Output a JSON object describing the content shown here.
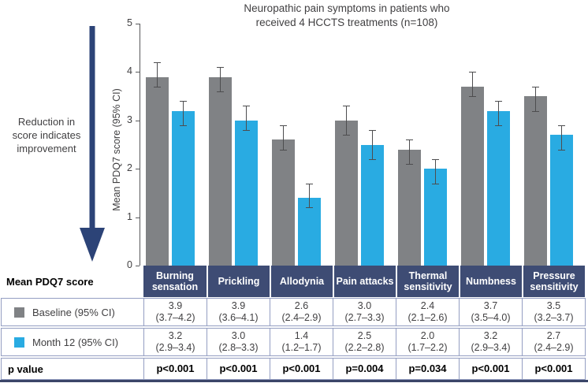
{
  "title": {
    "lines": [
      "Neuropathic pain symptoms in patients who",
      "received 4 HCCTS treatments (n=108)"
    ]
  },
  "annotation": {
    "lines": [
      "Reduction in",
      "score indicates",
      "improvement"
    ]
  },
  "y_axis": {
    "label": "Mean PDQ7 score (95% CI)",
    "ticks": [
      0,
      1,
      2,
      3,
      4,
      5
    ]
  },
  "colors": {
    "baseline_bar": "#808285",
    "month12_bar": "#29ABE2",
    "header_navy": "#3E4C74",
    "arrow_navy": "#2C4377",
    "table_border": "#949EC2",
    "error_bar": "#4D4D4F",
    "bottom_rule": "#3A4568"
  },
  "chart_data": {
    "type": "bar",
    "title": "Neuropathic pain symptoms in patients who received 4 HCCTS treatments (n=108)",
    "xlabel": "",
    "ylabel": "Mean PDQ7 score (95% CI)",
    "ylim": [
      0,
      5
    ],
    "grid": false,
    "legend_position": "table-left",
    "categories": [
      "Burning sensation",
      "Prickling",
      "Allodynia",
      "Pain attacks",
      "Thermal sensitivity",
      "Numbness",
      "Pressure sensitivity"
    ],
    "series": [
      {
        "name": "Baseline (95% CI)",
        "color": "#808285",
        "values": [
          3.9,
          3.9,
          2.6,
          3.0,
          2.4,
          3.7,
          3.5
        ],
        "ci_low": [
          3.7,
          3.6,
          2.4,
          2.7,
          2.1,
          3.5,
          3.2
        ],
        "ci_high": [
          4.2,
          4.1,
          2.9,
          3.3,
          2.6,
          4.0,
          3.7
        ]
      },
      {
        "name": "Month 12 (95% CI)",
        "color": "#29ABE2",
        "values": [
          3.2,
          3.0,
          1.4,
          2.5,
          2.0,
          3.2,
          2.7
        ],
        "ci_low": [
          2.9,
          2.8,
          1.2,
          2.2,
          1.7,
          2.9,
          2.4
        ],
        "ci_high": [
          3.4,
          3.3,
          1.7,
          2.8,
          2.2,
          3.4,
          2.9
        ]
      }
    ],
    "p_values": [
      "p<0.001",
      "p<0.001",
      "p<0.001",
      "p=0.004",
      "p=0.034",
      "p<0.001",
      "p<0.001"
    ]
  },
  "table": {
    "corner_label": "Mean PDQ7 score",
    "rows": [
      {
        "label": "Baseline (95% CI)",
        "swatch": "#808285",
        "cells": [
          {
            "mean": "3.9",
            "ci": "(3.7–4.2)"
          },
          {
            "mean": "3.9",
            "ci": "(3.6–4.1)"
          },
          {
            "mean": "2.6",
            "ci": "(2.4–2.9)"
          },
          {
            "mean": "3.0",
            "ci": "(2.7–3.3)"
          },
          {
            "mean": "2.4",
            "ci": "(2.1–2.6)"
          },
          {
            "mean": "3.7",
            "ci": "(3.5–4.0)"
          },
          {
            "mean": "3.5",
            "ci": "(3.2–3.7)"
          }
        ]
      },
      {
        "label": "Month 12 (95% CI)",
        "swatch": "#29ABE2",
        "cells": [
          {
            "mean": "3.2",
            "ci": "(2.9–3.4)"
          },
          {
            "mean": "3.0",
            "ci": "(2.8–3.3)"
          },
          {
            "mean": "1.4",
            "ci": "(1.2–1.7)"
          },
          {
            "mean": "2.5",
            "ci": "(2.2–2.8)"
          },
          {
            "mean": "2.0",
            "ci": "(1.7–2.2)"
          },
          {
            "mean": "3.2",
            "ci": "(2.9–3.4)"
          },
          {
            "mean": "2.7",
            "ci": "(2.4–2.9)"
          }
        ]
      },
      {
        "label": "p value",
        "cells": [
          "p<0.001",
          "p<0.001",
          "p<0.001",
          "p=0.004",
          "p=0.034",
          "p<0.001",
          "p<0.001"
        ]
      }
    ]
  }
}
